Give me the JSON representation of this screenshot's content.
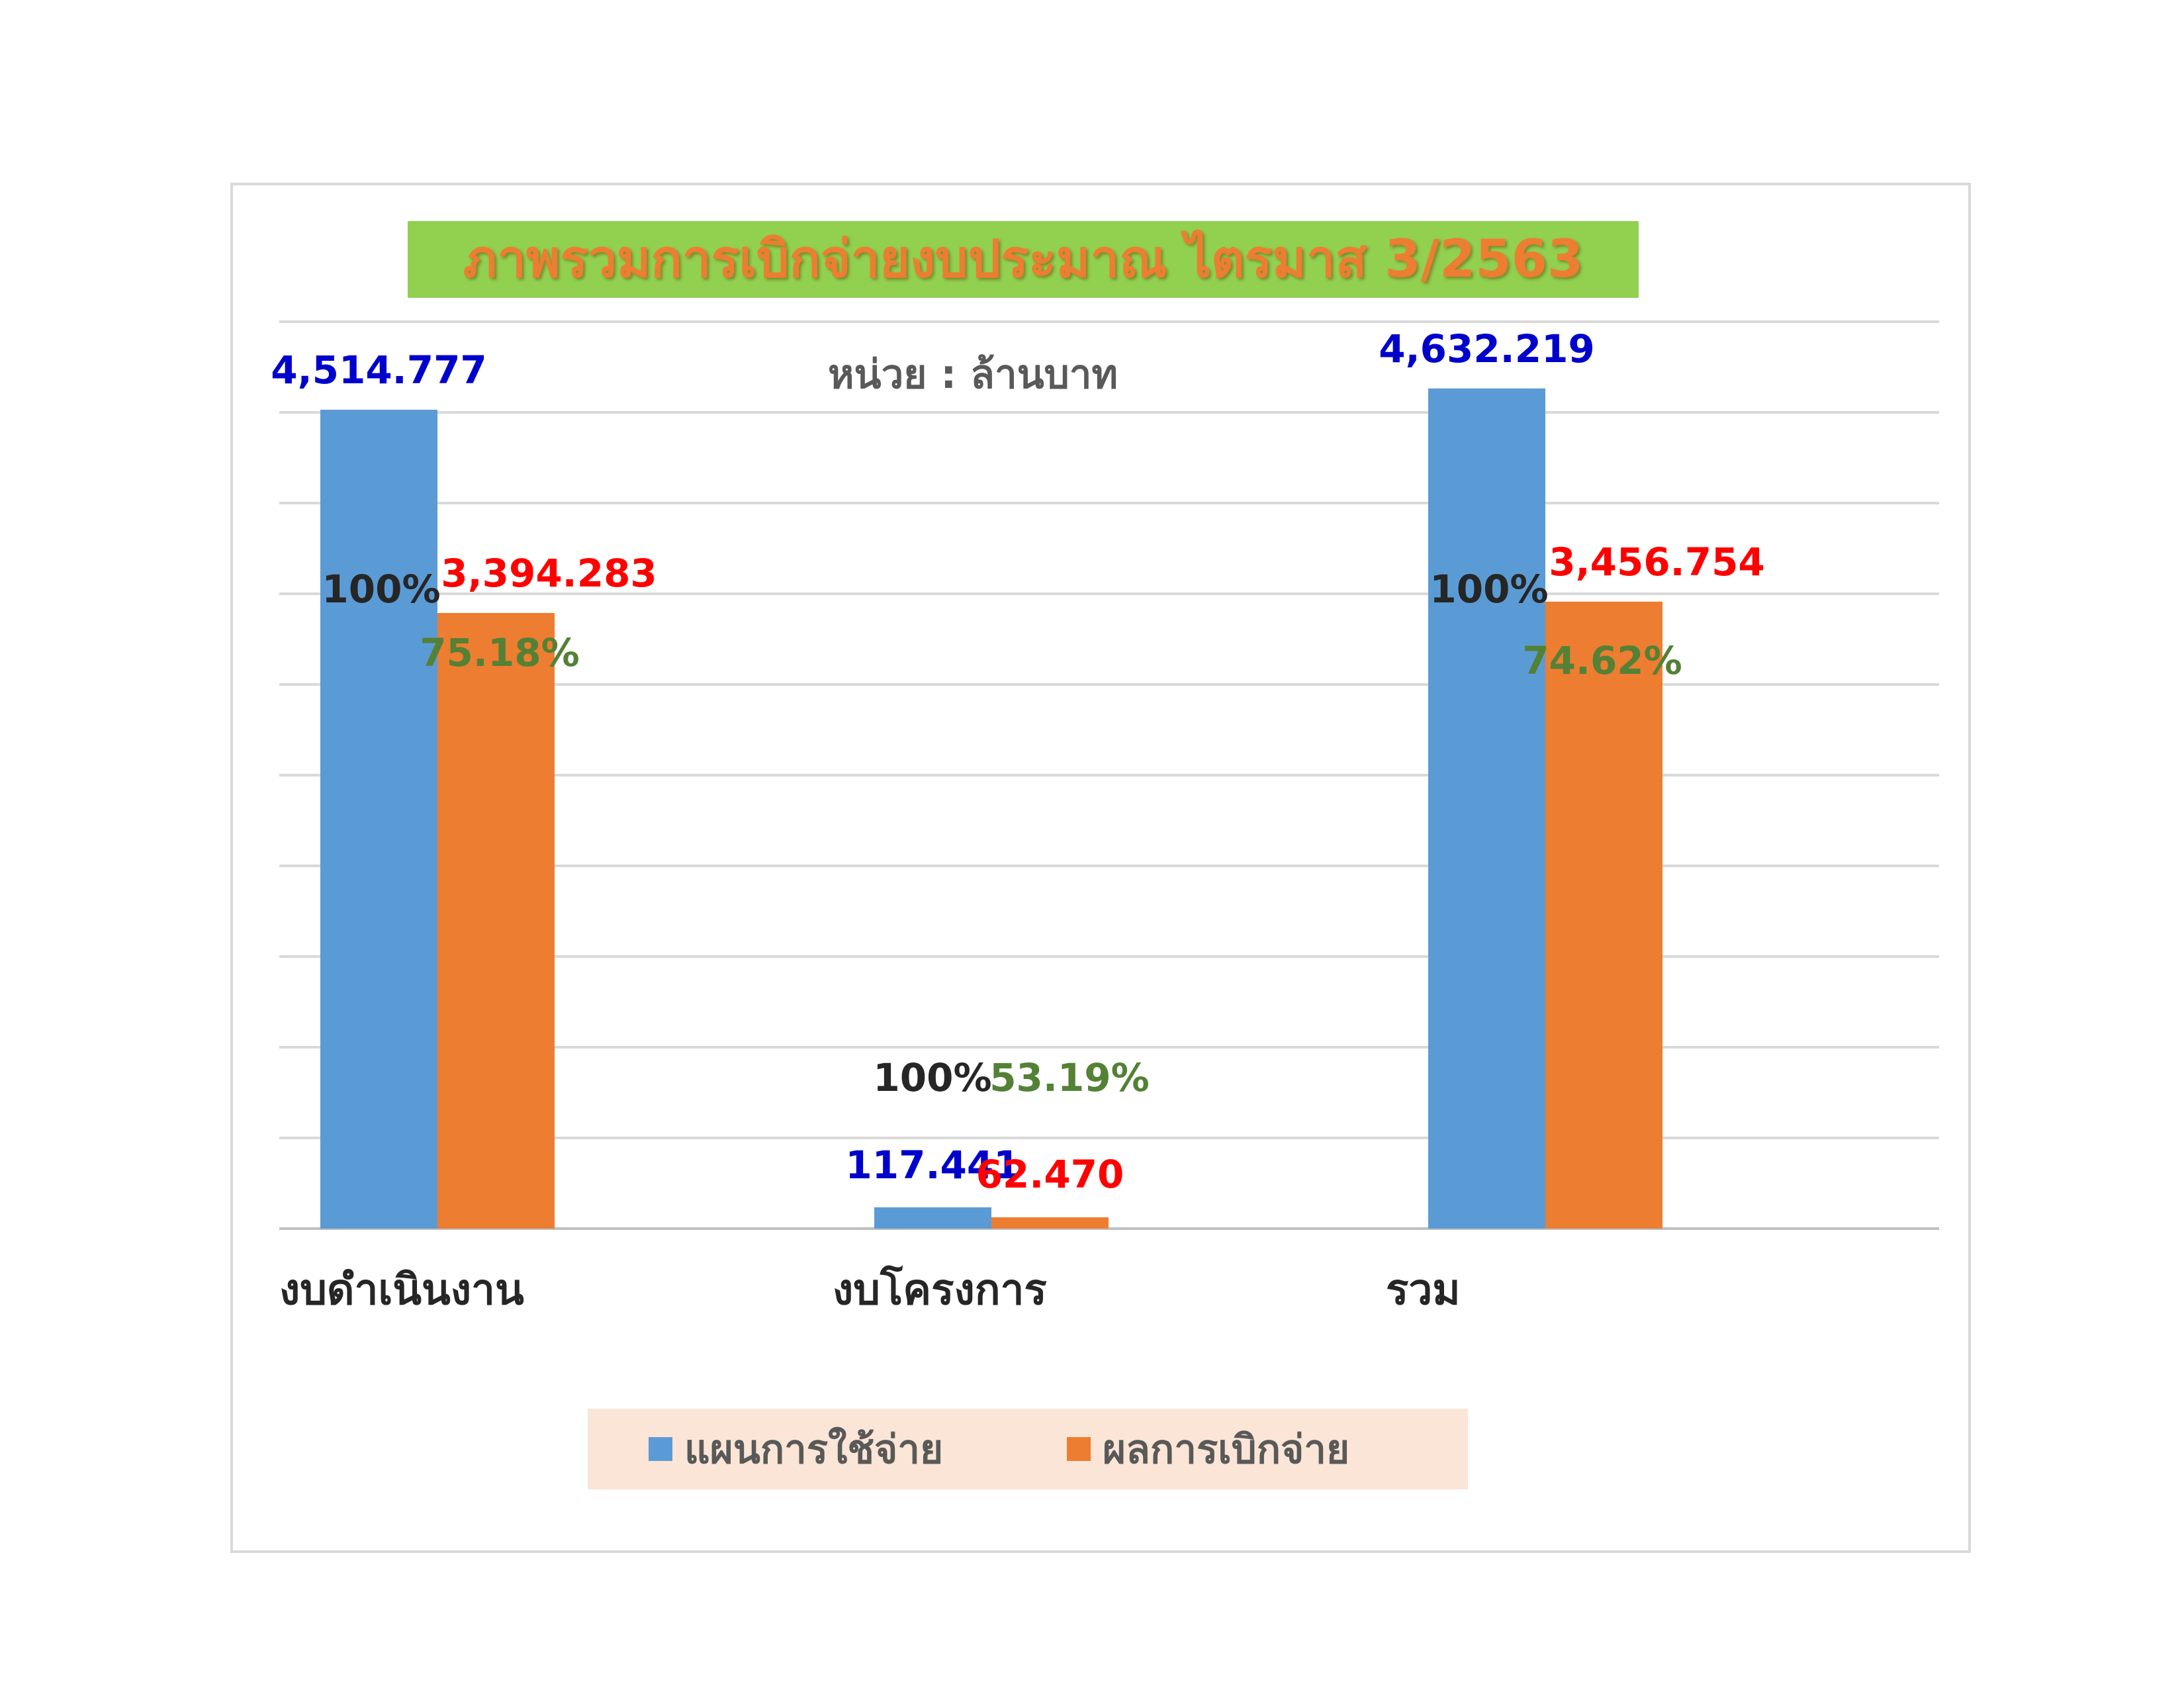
{
  "chart_data": {
    "type": "bar",
    "title": "ภาพรวมการเบิกจ่ายงบประมาณ ไตรมาส 3/2563",
    "unit_label": "หน่วย : ล้านบาท",
    "categories": [
      "งบดำเนินงาน",
      "งบโครงการ",
      "รวม"
    ],
    "series": [
      {
        "name": "แผนการใช้จ่าย",
        "values": [
          4514.777,
          117.441,
          4632.219
        ],
        "value_labels": [
          "4,514.777",
          "117.441",
          "4,632.219"
        ],
        "percent_labels": [
          "100%",
          "100%",
          "100%"
        ],
        "color": "#5b9bd5",
        "value_label_color": "#0000cc",
        "percent_label_color": "#262626"
      },
      {
        "name": "ผลการเบิกจ่าย",
        "values": [
          3394.283,
          62.47,
          3456.754
        ],
        "value_labels": [
          "3,394.283",
          "62.470",
          "3,456.754"
        ],
        "percent_labels": [
          "75.18%",
          "53.19%",
          "74.62%"
        ],
        "color": "#ed7d31",
        "value_label_color": "#ff0000",
        "percent_label_color": "#538135"
      }
    ],
    "ylim": [
      0,
      5000
    ],
    "y_gridline_step": 500,
    "grid": true,
    "legend_position": "bottom",
    "xlabel": "",
    "ylabel": ""
  }
}
